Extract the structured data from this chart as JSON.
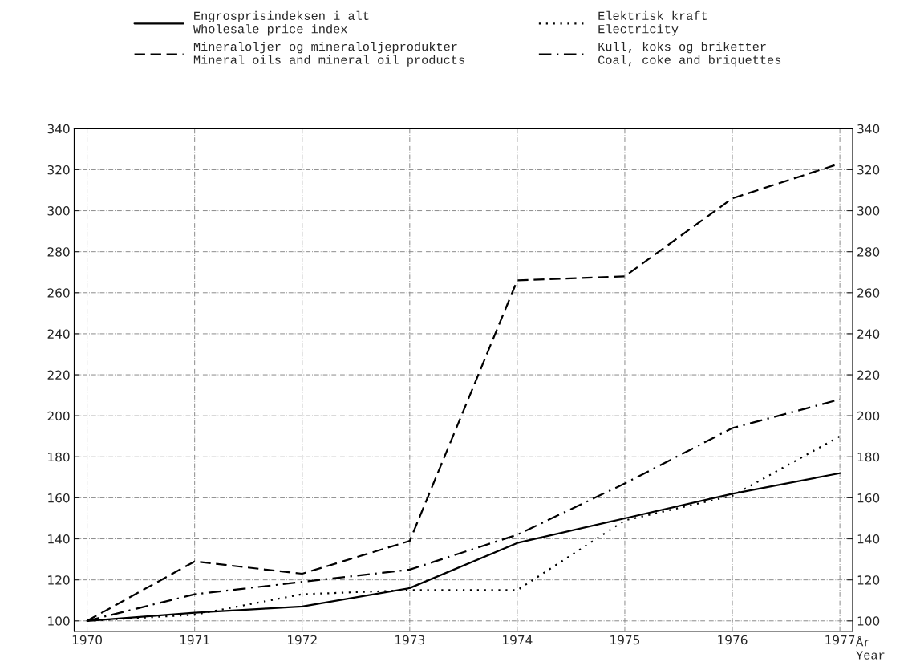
{
  "chart_data": {
    "type": "line",
    "x": [
      1970,
      1971,
      1972,
      1973,
      1974,
      1975,
      1976,
      1977
    ],
    "xlabel": "År\nYear",
    "xlim": [
      1969.88,
      1977.12
    ],
    "xticks": [
      1970,
      1971,
      1972,
      1973,
      1974,
      1975,
      1976,
      1977
    ],
    "ylim": [
      95,
      340
    ],
    "yticks": [
      100,
      120,
      140,
      160,
      180,
      200,
      220,
      240,
      260,
      280,
      300,
      320,
      340
    ],
    "y2lim": [
      95,
      340
    ],
    "y2ticks": [
      100,
      120,
      140,
      160,
      180,
      200,
      220,
      240,
      260,
      280,
      300,
      320,
      340
    ],
    "grid": true,
    "legend": "top",
    "marker": "none",
    "series": [
      {
        "name": "Engrosprisindeksen i alt\nWholesale price index",
        "color": "#000000",
        "line_style": "solid",
        "values": [
          100,
          104,
          107,
          116,
          138,
          150,
          162,
          172
        ]
      },
      {
        "name": "Mineraloljer og mineraloljeprodukter\nMineral oils and mineral oil products",
        "color": "#000000",
        "line_style": "dashed",
        "values": [
          100,
          129,
          123,
          139,
          266,
          268,
          306,
          323
        ]
      },
      {
        "name": "Elektrisk kraft\nElectricity",
        "color": "#000000",
        "line_style": "dotted",
        "values": [
          100,
          103,
          113,
          115,
          115,
          149,
          161,
          190
        ]
      },
      {
        "name": "Kull, koks og briketter\nCoal, coke and briquettes",
        "color": "#000000",
        "line_style": "dashdot",
        "values": [
          100,
          113,
          119,
          125,
          142,
          167,
          194,
          208
        ]
      }
    ]
  }
}
